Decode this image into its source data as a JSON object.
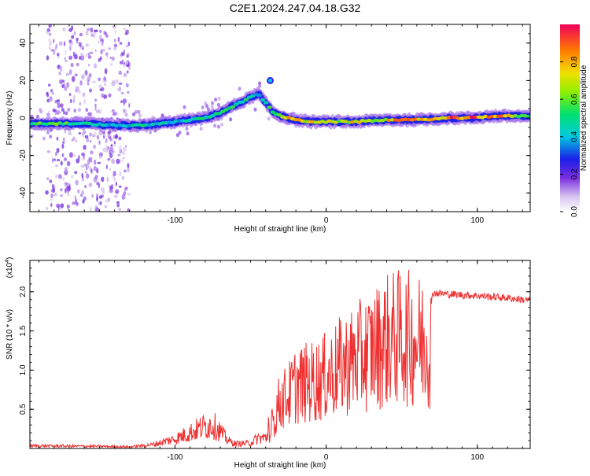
{
  "title": "C2E1.2024.247.04.18.G32",
  "chart_data": [
    {
      "type": "heatmap",
      "name": "spectrogram",
      "xlabel": "Height of straight line (km)",
      "ylabel": "Frequency (Hz)",
      "xlim": [
        -196,
        135
      ],
      "ylim": [
        -50,
        50
      ],
      "x_ticks": [
        -100,
        0,
        100
      ],
      "x_tick_labels": [
        "-100",
        "0",
        "100"
      ],
      "y_ticks": [
        -40,
        -20,
        0,
        20,
        40
      ],
      "y_tick_labels": [
        "-40",
        "-20",
        "0",
        "20",
        "40"
      ],
      "colorbar": {
        "label": "Normalized spectral amplitude",
        "range": [
          0,
          1
        ],
        "ticks": [
          0.0,
          0.2,
          0.4,
          0.6,
          0.8
        ],
        "tick_labels": [
          "0.0",
          "0.2",
          "0.4",
          "0.6",
          "0.8"
        ]
      },
      "ridge": {
        "x": [
          -196,
          -180,
          -160,
          -140,
          -120,
          -100,
          -80,
          -70,
          -60,
          -50,
          -45,
          -40,
          -35,
          -30,
          -20,
          -10,
          0,
          20,
          40,
          60,
          80,
          95,
          110,
          135
        ],
        "frequency": [
          -3,
          -3,
          -3,
          -4,
          -4,
          -2,
          0,
          3,
          7,
          11,
          13,
          8,
          3,
          1,
          -1,
          -2,
          -2,
          -2,
          -1,
          -1,
          0,
          0,
          1,
          1
        ],
        "amplitude": [
          0.55,
          0.6,
          0.5,
          0.45,
          0.5,
          0.45,
          0.5,
          0.55,
          0.55,
          0.5,
          0.45,
          0.5,
          0.6,
          0.75,
          0.8,
          0.75,
          0.7,
          0.75,
          0.8,
          0.85,
          0.9,
          1.0,
          0.9,
          0.6
        ]
      },
      "isolated_blob": {
        "x": -37,
        "frequency": 20,
        "amplitude": 0.4
      },
      "noise_band_x": [
        -185,
        -130
      ]
    },
    {
      "type": "line",
      "name": "snr",
      "xlabel": "Height of straight line (km)",
      "ylabel": "SNR (10 * v/v)",
      "y_scale_label": "(x10",
      "y_scale_exponent": "4",
      "xlim": [
        -196,
        135
      ],
      "ylim": [
        0,
        24000
      ],
      "x_ticks": [
        -100,
        0,
        100
      ],
      "x_tick_labels": [
        "-100",
        "0",
        "100"
      ],
      "y_ticks": [
        5000,
        10000,
        15000,
        20000
      ],
      "y_tick_labels": [
        "0.5",
        "1.0",
        "1.5",
        "2.0"
      ],
      "series": [
        {
          "name": "SNR",
          "color": "#ee3030",
          "envelope_x": [
            -196,
            -150,
            -130,
            -115,
            -100,
            -90,
            -80,
            -75,
            -70,
            -65,
            -60,
            -50,
            -45,
            -40,
            -36,
            -33,
            -30,
            -25,
            -20,
            -10,
            0,
            10,
            20,
            30,
            40,
            50,
            60,
            70,
            80,
            100,
            120,
            135
          ],
          "envelope_y": [
            500,
            400,
            300,
            700,
            1800,
            3000,
            4200,
            4500,
            3200,
            1500,
            900,
            1000,
            2000,
            2000,
            3500,
            7500,
            9000,
            10000,
            12000,
            12500,
            13500,
            15500,
            17000,
            18500,
            20500,
            21000,
            20500,
            20000,
            19800,
            19600,
            19300,
            19000
          ]
        }
      ]
    }
  ]
}
